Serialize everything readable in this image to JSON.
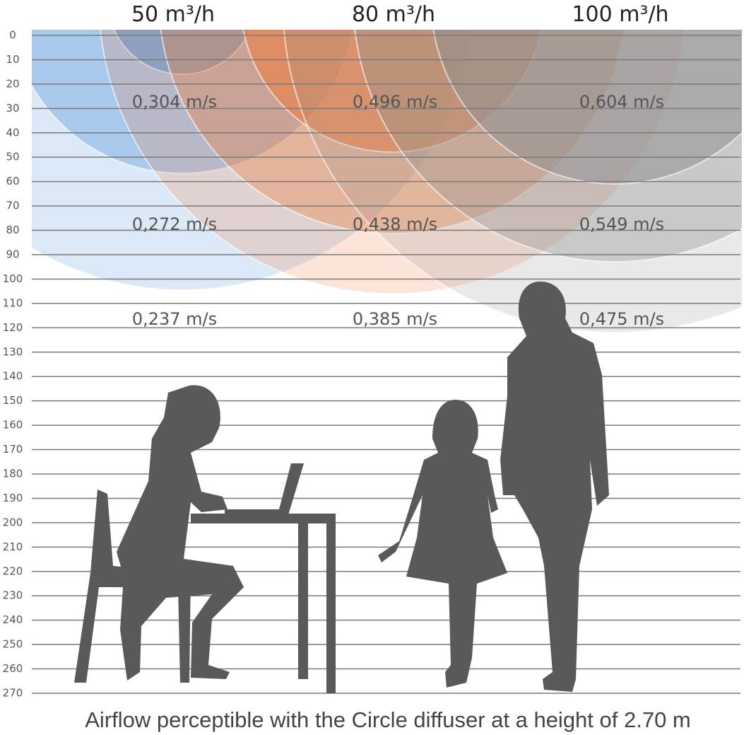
{
  "columns": [
    {
      "title": "50 m³/h",
      "labels": [
        "0,304 m/s",
        "0,272 m/s",
        "0,237 m/s"
      ]
    },
    {
      "title": "80 m³/h",
      "labels": [
        "0,496 m/s",
        "0,438 m/s",
        "0,385 m/s"
      ]
    },
    {
      "title": "100 m³/h",
      "labels": [
        "0,604 m/s",
        "0,549 m/s",
        "0,475 m/s"
      ]
    }
  ],
  "scale": [
    0,
    10,
    20,
    30,
    40,
    50,
    60,
    70,
    80,
    90,
    100,
    110,
    120,
    130,
    140,
    150,
    160,
    170,
    180,
    190,
    200,
    210,
    220,
    230,
    240,
    250,
    260,
    270
  ],
  "caption": "Airflow perceptible with the Circle diffuser at a height of 2.70 m"
}
